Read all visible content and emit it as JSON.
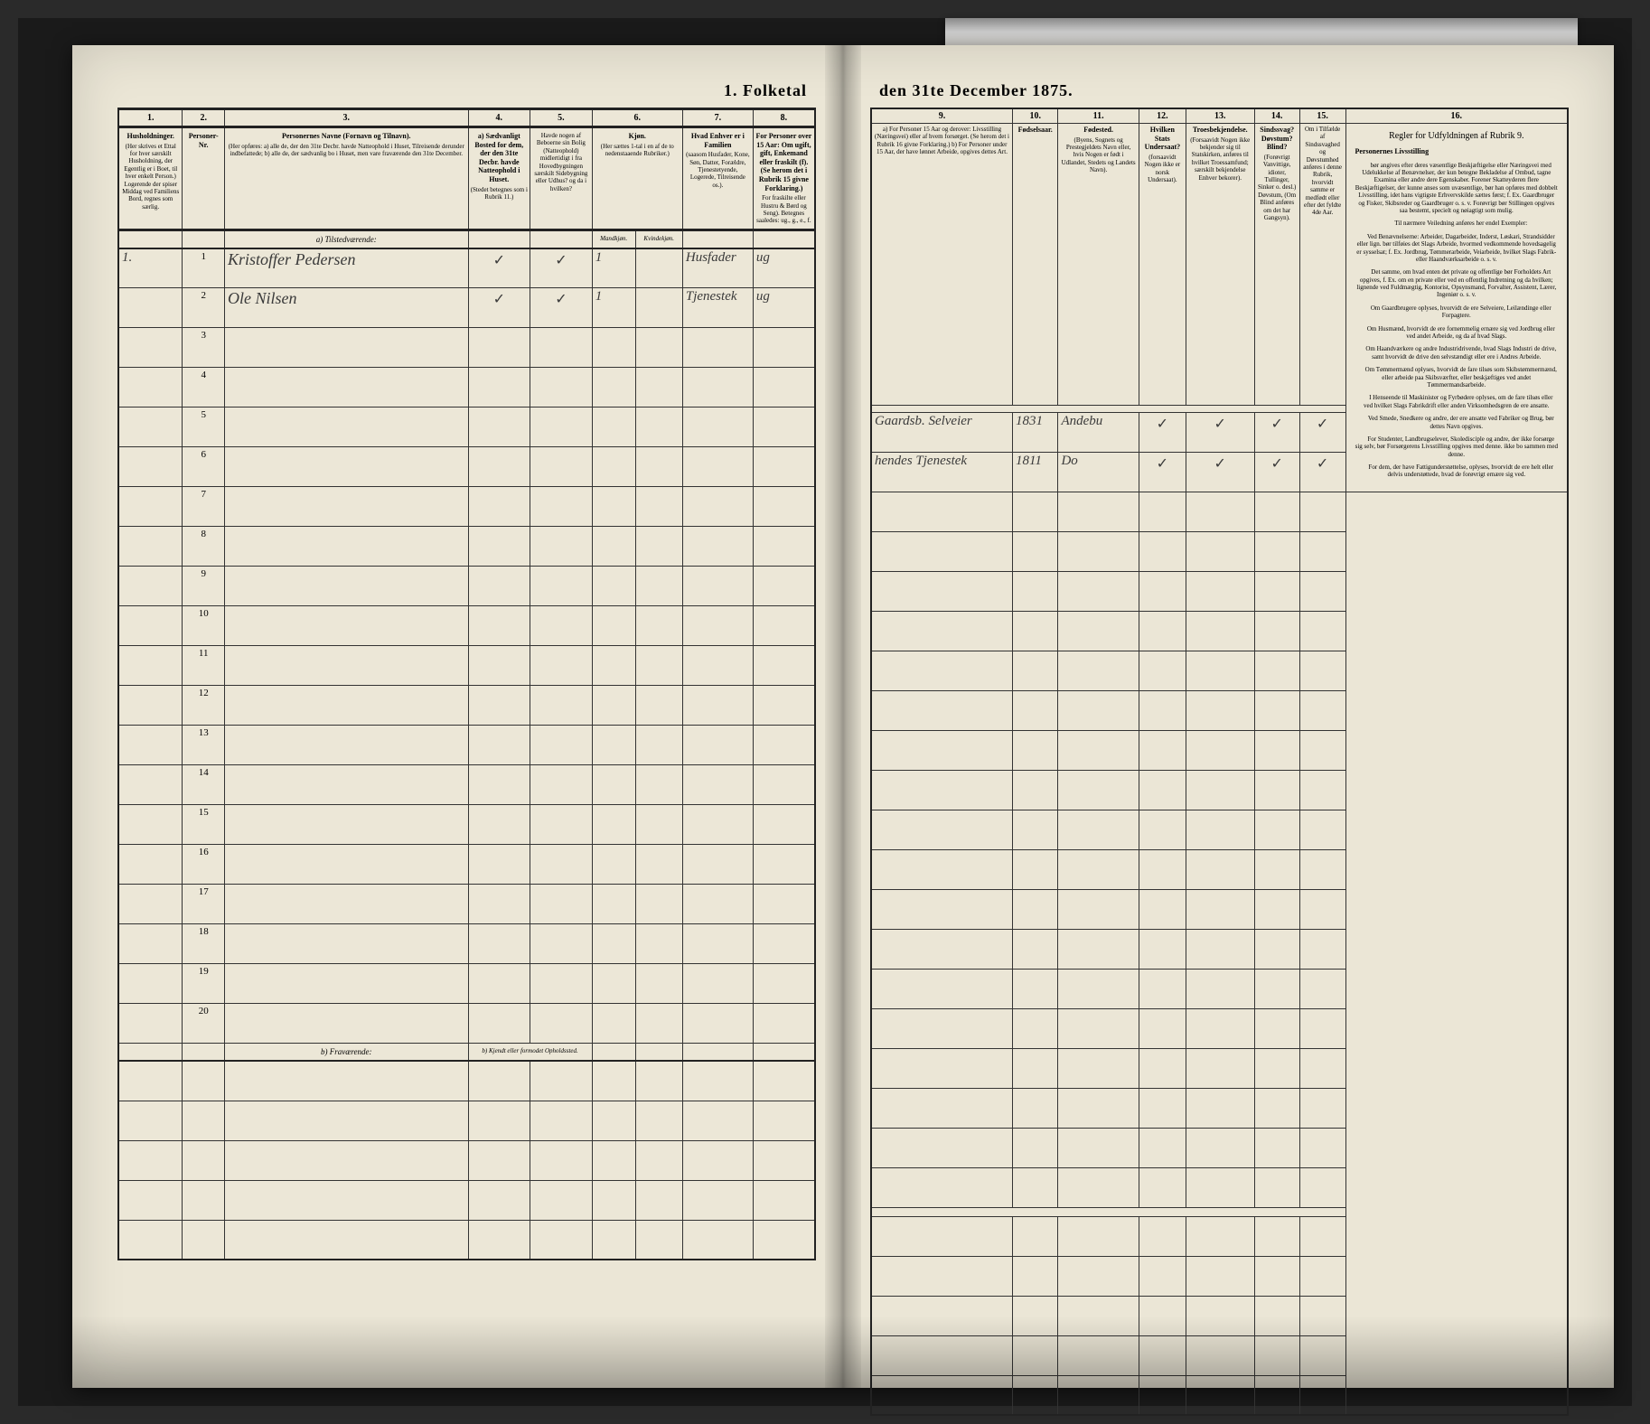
{
  "document": {
    "title_left": "1. Folketal",
    "title_right": "den 31te December 1875.",
    "census_date": "31te December 1875"
  },
  "left_columns": {
    "nums": [
      "1.",
      "2.",
      "3.",
      "4.",
      "5.",
      "6.",
      "7.",
      "8."
    ],
    "c1": {
      "title": "Husholdninger.",
      "body": "(Her skrives et Ettal for hver særskilt Husholdning, der Egentlig er i Boet, til hver enkelt Person.)\nLogerende der spiser Middag ved Familiens Bord, regnes som særlig."
    },
    "c2": {
      "title": "Personer-Nr."
    },
    "c3": {
      "title": "Personernes Navne (Fornavn og Tilnavn).",
      "body": "(Her opføres:\na) alle de, der den 31te Decbr. havde Natteophold i Huset, Tilreisende derunder indbefattede;\nb) alle de, der sædvanlig bo i Huset, men vare fraværende den 31te December."
    },
    "c4": {
      "title": "a) Sædvanligt Bosted for dem, der den 31te Decbr. havde Natteophold i Huset.",
      "body": "(Stedet betegnes som i Rubrik 11.)"
    },
    "c5": {
      "title": "Havde nogen af Beboerne sin Bolig (Natteophold) midlertidigt i fra Hovedbygningen særskilt Sidebygning eller Udhus? og da i hvilken?"
    },
    "c6": {
      "title": "Kjøn.",
      "sub": "(Her sættes 1-tal i en af de to nedenstaaende Rubriker.)",
      "sub1": "Mandkjøn.",
      "sub2": "Kvindekjøn."
    },
    "c7": {
      "title": "Hvad Enhver er i Familien",
      "body": "(saasom Husfader, Kone, Søn, Datter, Forældre, Tjenestetyende, Logerede, Tilreisende os.)."
    },
    "c8": {
      "title": "For Personer over 15 Aar: Om ugift, gift, Enkemand eller fraskilt (f). (Se herom det i Rubrik 15 givne Forklaring.)",
      "body": "For fraskilte eller Hustru & Børd og Seng).\nBetegnes saaledes: ug., g., e., f."
    }
  },
  "right_columns": {
    "nums": [
      "9.",
      "10.",
      "11.",
      "12.",
      "13.",
      "14.",
      "15.",
      "16."
    ],
    "c9": {
      "title": "a) For Personer 15 Aar og derover: Livsstilling (Næringsvei) eller af hvem forsørget. (Se herom det i Rubrik 16 givne Forklaring.)\nb) For Personer under 15 Aar, der have lønnet Arbeide, opgives dettes Art."
    },
    "c10": {
      "title": "Fødselsaar."
    },
    "c11": {
      "title": "Fødested.",
      "body": "(Byens, Sognets og Prestegjeldets Navn eller, hvis Nogen er født i Udlandet, Stedets og Landets Navn)."
    },
    "c12": {
      "title": "Hvilken Stats Undersaat?",
      "body": "(forsaavidt Nogen ikke er norsk Undersaat)."
    },
    "c13": {
      "title": "Troesbekjendelse.",
      "body": "(Forsaavidt Nogen ikke bekjender sig til Statskirken, anføres til hvilket Troessamfund; særskilt bekjendelse Enhver bekorer)."
    },
    "c14": {
      "title": "Sindssvag? Døvstum? Blind?",
      "body": "(Forøvrigt Vanvittige, idioter, Tullinger, Sinker o. desl.) Døvstum, (Om Blind anføres om det har Gangsyn)."
    },
    "c15": {
      "title": "Om i Tilfælde af Sindssvaghed og Døvstumhed anføres i denne Rubrik, hvorvidt samme er medfødt eller efter det fyldte 4de Aar."
    },
    "c16_title": "Regler for Udfyldningen af Rubrik 9."
  },
  "subsections": {
    "a": "a) Tilstedværende:",
    "b": "b) Fraværende:",
    "b_note": "b) Kjendt eller formodet Opholdssted."
  },
  "entries": [
    {
      "household": "1.",
      "person_no": "1",
      "name": "Kristoffer Pedersen",
      "col4": "✓",
      "col5": "✓",
      "sex_m": "1",
      "sex_f": "",
      "family_role": "Husfader",
      "marital": "ug",
      "occupation": "Gaardsb. Selveier",
      "birth_year": "1831",
      "birthplace": "Andebu",
      "col12": "✓",
      "col13": "✓",
      "col14": "✓",
      "col15": "✓"
    },
    {
      "household": "",
      "person_no": "2",
      "name": "Ole Nilsen",
      "col4": "✓",
      "col5": "✓",
      "sex_m": "1",
      "sex_f": "",
      "family_role": "Tjenestek",
      "marital": "ug",
      "occupation": "hendes Tjenestek",
      "birth_year": "1811",
      "birthplace": "Do",
      "col12": "✓",
      "col13": "✓",
      "col14": "✓",
      "col15": "✓"
    }
  ],
  "instructions": {
    "heading": "Personernes Livsstilling",
    "paragraphs": [
      "bør angives efter deres væsentlige Beskjæftigelse eller Næringsvei med Udelukkelse af Benævnelser, der kun betegne Bekladelse af Ombud, tagne Examina eller andre dere Egenskaber. Forener Skatteyderen flere Beskjæftigelser, der kunne anses som uvæsentlige, bør han opføres med dobbelt Livsstilling, idet hans vigtigste Erhvervskilde sættes først; f. Ex. Gaardbruger og Fisker, Skibsreder og Gaardbruger o. s. v. Forøvrigt bør Stillingen opgives saa bestemt, specielt og nøiagtigt som mulig.",
      "Til nærmere Veiledning anføres her endel Exempler:",
      "Ved Benævnelserne: Arbeider, Dagarbeider, Inderst, Løskari, Strandsidder eller lign. bør tilføies det Slags Arbeide, hvormed vedkommende hovedsagelig er sysselsat; f. Ex. Jordbrug, Tømmerarbeide, Veiarbeide, hvilket Slags Fabrik- eller Haandværksarbeide o. s. v.",
      "Det samme, om hvad enten det private og offentlige bør Forholdets Art opgives, f. Ex. om en private eller ved en offentlig Indretning og da hvilken; lignende ved Fuldmægtig, Kontorist, Opsynsmand, Forvalter, Assistent, Lærer, Ingeniør o. s. v.",
      "Om Gaardbrugere oplyses, hvorvidt de ere Selveiere, Leilændinge eller Forpagtere.",
      "Om Husmænd, hvorvidt de ere fornemmelig ernære sig ved Jordbrug eller ved andet Arbeide, og da af hvad Slags.",
      "Om Haandværkere og andre Industridrivende, hvad Slags Industri de drive, samt hvorvidt de drive den selvstændigt eller ere i Andres Arbeide.",
      "Om Tømmermænd oplyses, hvorvidt de fare tilsøs som Skibstømmermænd, eller arbeide paa Skibsværfter, eller beskjæftiges ved andet Tømmermandsarbeide.",
      "I Henseende til Maskinister og Fyrbødere oplyses, om de fare tilsøs eller ved hvilket Slags Fabrikdrift eller anden Virksomhedsgren de ere ansatte.",
      "Ved Smede, Snedkere og andre, der ere ansatte ved Fabriker og Brug, bør dettes Navn opgives.",
      "For Studenter, Landbrugselever, Skoledisciple og andre, der ikke forsørge sig selv, bør Forsørgerens Livsstilling opgives med denne. ikke bo sammen med denne.",
      "For dem, der have Fattigunderstøttelse, oplyses, hvorvidt de ere helt eller delvis understøttede, hvad de forøvrigt ernære sig ved."
    ]
  },
  "row_numbers": [
    3,
    4,
    5,
    6,
    7,
    8,
    9,
    10,
    11,
    12,
    13,
    14,
    15,
    16,
    17,
    18,
    19,
    20
  ],
  "colors": {
    "paper": "#ebe6d6",
    "ink": "#222222",
    "handwriting": "#3a3a3a",
    "frame": "#1a1a1a"
  }
}
